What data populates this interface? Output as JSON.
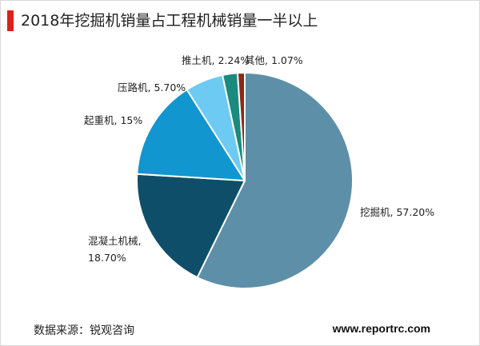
{
  "page": {
    "title": "2018年挖掘机销量占工程机械销量一半以上",
    "source": "数据来源：锐观咨询",
    "website": "www.reportrc.com",
    "accent_color": "#d9231d"
  },
  "chart_data": {
    "type": "pie",
    "title": "2018年挖掘机销量占工程机械销量一半以上",
    "slices": [
      {
        "name": "挖掘机",
        "value": 57.2,
        "label": "挖掘机, 57.20%",
        "color": "#5d8fa8"
      },
      {
        "name": "混凝土机械",
        "value": 18.7,
        "label_lines": [
          "混凝土机械,",
          "18.70%"
        ],
        "color": "#0f4e68"
      },
      {
        "name": "起重机",
        "value": 15,
        "label": "起重机, 15%",
        "color": "#1296cf"
      },
      {
        "name": "压路机",
        "value": 5.7,
        "label": "压路机, 5.70%",
        "color": "#6dcaf2"
      },
      {
        "name": "推土机",
        "value": 2.24,
        "label": "推土机, 2.24%",
        "color": "#1b8a7e"
      },
      {
        "name": "其他",
        "value": 1.07,
        "label": "其他, 1.07%",
        "color": "#8c2a16"
      }
    ],
    "start": "top",
    "direction": "clockwise",
    "legend": "none"
  }
}
